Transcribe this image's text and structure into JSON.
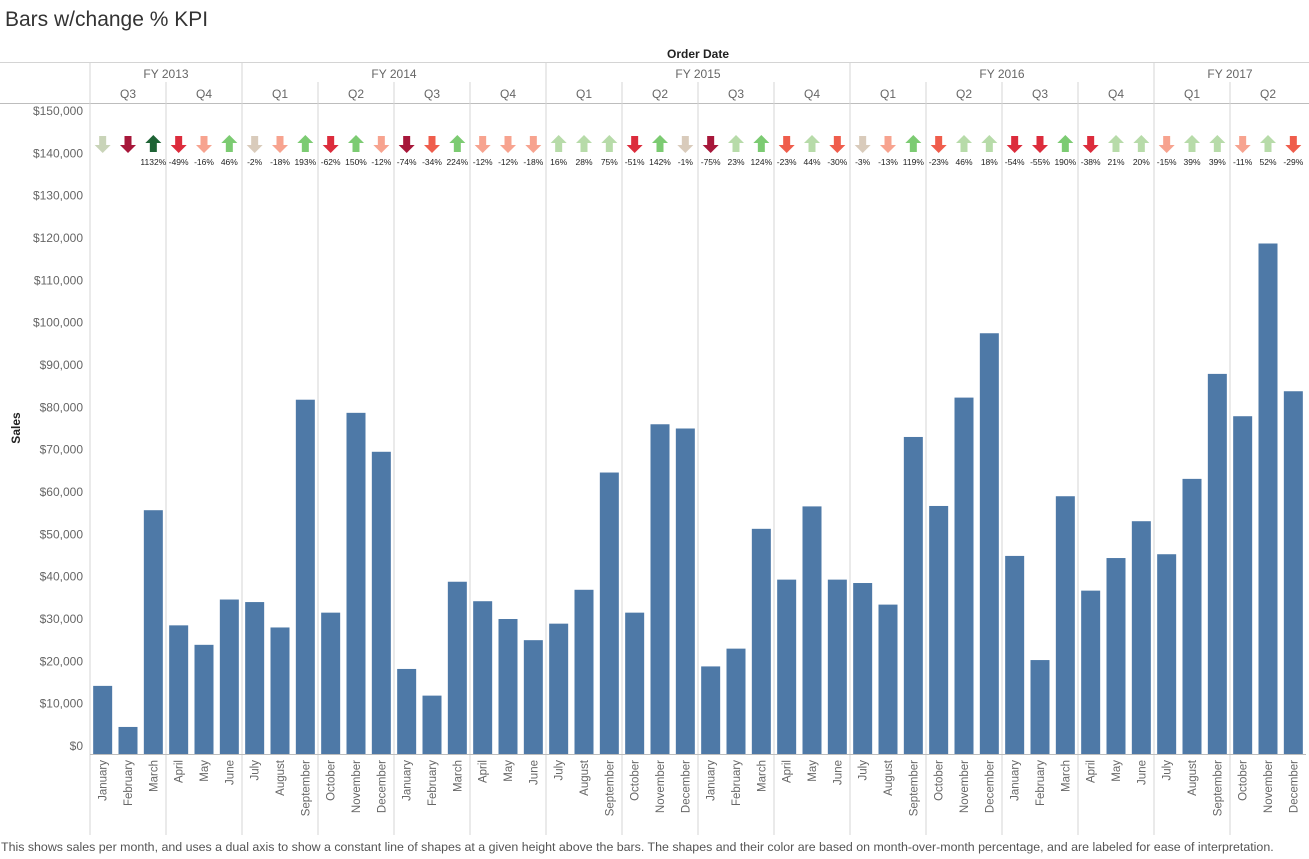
{
  "title": "Bars w/change % KPI",
  "caption": "This shows sales per month, and uses a dual axis to show a constant line of shapes at a given height above the bars. The shapes and their color are based on month-over-month percentage, and are labeled for ease of interpretation.",
  "colors": {
    "bar": "#4e79a7",
    "grid": "#d4d4d4",
    "strong_up": "#1e6335",
    "up": "#7ccb72",
    "light_up": "#b7dba9",
    "flat": "#d9cbbb",
    "flat_down": "#c9d4b8",
    "light_down": "#f7a38f",
    "down": "#ef5d4c",
    "strong_down": "#dc2c3c",
    "very_strong_down": "#a7173a"
  },
  "chart_data": {
    "type": "bar",
    "title": "Bars w/change % KPI",
    "column_header": "Order Date",
    "ylabel": "Sales",
    "ylim": [
      0,
      150000
    ],
    "yticks": [
      "$0",
      "$10,000",
      "$20,000",
      "$30,000",
      "$40,000",
      "$50,000",
      "$60,000",
      "$70,000",
      "$80,000",
      "$90,000",
      "$100,000",
      "$110,000",
      "$120,000",
      "$130,000",
      "$140,000",
      "$150,000"
    ],
    "fiscal_years": [
      {
        "label": "FY 2013",
        "months": 6
      },
      {
        "label": "FY 2014",
        "months": 12
      },
      {
        "label": "FY 2015",
        "months": 12
      },
      {
        "label": "FY 2016",
        "months": 12
      },
      {
        "label": "FY 2017",
        "months": 6
      }
    ],
    "quarters": [
      {
        "label": "Q3",
        "months": 3
      },
      {
        "label": "Q4",
        "months": 3
      },
      {
        "label": "Q1",
        "months": 3
      },
      {
        "label": "Q2",
        "months": 3
      },
      {
        "label": "Q3",
        "months": 3
      },
      {
        "label": "Q4",
        "months": 3
      },
      {
        "label": "Q1",
        "months": 3
      },
      {
        "label": "Q2",
        "months": 3
      },
      {
        "label": "Q3",
        "months": 3
      },
      {
        "label": "Q4",
        "months": 3
      },
      {
        "label": "Q1",
        "months": 3
      },
      {
        "label": "Q2",
        "months": 3
      },
      {
        "label": "Q3",
        "months": 3
      },
      {
        "label": "Q4",
        "months": 3
      },
      {
        "label": "Q1",
        "months": 3
      },
      {
        "label": "Q2",
        "months": 3
      }
    ],
    "categories": [
      "January",
      "February",
      "March",
      "April",
      "May",
      "June",
      "July",
      "August",
      "September",
      "October",
      "November",
      "December",
      "January",
      "February",
      "March",
      "April",
      "May",
      "June",
      "July",
      "August",
      "September",
      "October",
      "November",
      "December",
      "January",
      "February",
      "March",
      "April",
      "May",
      "June",
      "July",
      "August",
      "September",
      "October",
      "November",
      "December",
      "January",
      "February",
      "March",
      "April",
      "May",
      "June",
      "July",
      "August",
      "September",
      "October",
      "November",
      "December"
    ],
    "values": [
      14200,
      4500,
      55700,
      28500,
      23900,
      34600,
      34000,
      28000,
      81800,
      31500,
      78700,
      69500,
      18200,
      11900,
      38800,
      34200,
      30000,
      25000,
      28900,
      36900,
      64600,
      31500,
      76000,
      75000,
      18800,
      23000,
      51300,
      39300,
      56600,
      39300,
      38500,
      33400,
      73000,
      56700,
      82300,
      97500,
      44900,
      20300,
      59000,
      36700,
      44400,
      53100,
      45300,
      63100,
      87900,
      77900,
      118700,
      83800
    ],
    "change_labels": [
      "",
      "",
      "1132%",
      "-49%",
      "-16%",
      "46%",
      "-2%",
      "-18%",
      "193%",
      "-62%",
      "150%",
      "-12%",
      "-74%",
      "-34%",
      "224%",
      "-12%",
      "-12%",
      "-18%",
      "16%",
      "28%",
      "75%",
      "-51%",
      "142%",
      "-1%",
      "-75%",
      "23%",
      "124%",
      "-23%",
      "44%",
      "-30%",
      "-3%",
      "-13%",
      "119%",
      "-23%",
      "46%",
      "18%",
      "-54%",
      "-55%",
      "190%",
      "-38%",
      "21%",
      "20%",
      "-15%",
      "39%",
      "39%",
      "-11%",
      "52%",
      "-29%"
    ],
    "kpi_shapes": [
      "flat_down",
      "very_strong_down",
      "strong_up",
      "strong_down",
      "light_down",
      "up",
      "flat",
      "light_down",
      "up",
      "strong_down",
      "up",
      "light_down",
      "very_strong_down",
      "down",
      "up",
      "light_down",
      "light_down",
      "light_down",
      "light_up",
      "light_up",
      "light_up",
      "strong_down",
      "up",
      "flat",
      "very_strong_down",
      "light_up",
      "up",
      "down",
      "light_up",
      "down",
      "flat",
      "light_down",
      "up",
      "down",
      "light_up",
      "light_up",
      "strong_down",
      "strong_down",
      "up",
      "strong_down",
      "light_up",
      "light_up",
      "light_down",
      "light_up",
      "light_up",
      "light_down",
      "light_up",
      "down"
    ]
  }
}
